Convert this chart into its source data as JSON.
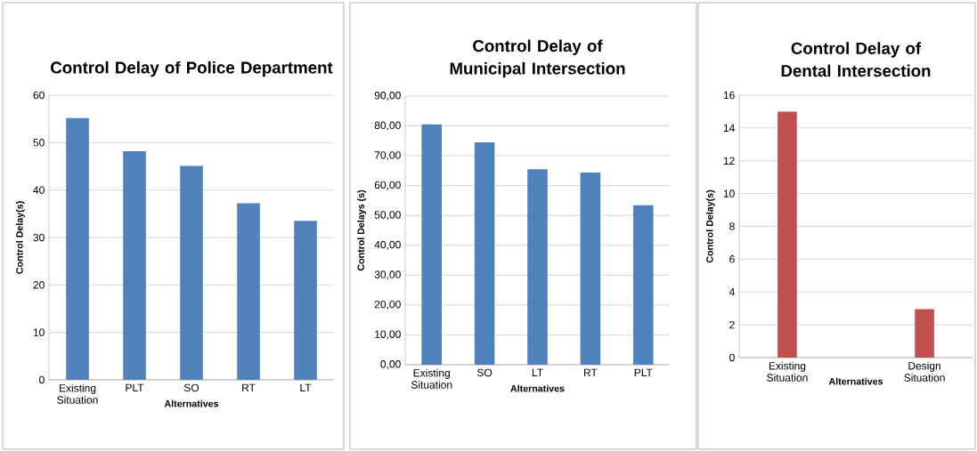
{
  "chart_data": [
    {
      "type": "bar",
      "title": "Control Delay of Police Department",
      "xlabel": "Alternatives",
      "ylabel": "Control Delay(s)",
      "categories": [
        "Existing Situation",
        "PLT",
        "SO",
        "RT",
        "LT"
      ],
      "values": [
        55.2,
        48.2,
        45.1,
        37.2,
        33.5
      ],
      "color": "#4f81bd",
      "ylim": [
        0,
        60
      ],
      "yticks": [
        0,
        10,
        20,
        30,
        40,
        50,
        60
      ],
      "grid": "y"
    },
    {
      "type": "bar",
      "title": "Control Delay of Municipal Intersection",
      "xlabel": "Alternatives",
      "ylabel": "Control Delays (s)",
      "categories": [
        "Existing Situation",
        "SO",
        "LT",
        "RT",
        "PLT"
      ],
      "values": [
        80.5,
        74.5,
        65.5,
        64.4,
        53.4
      ],
      "color": "#4f81bd",
      "ylim": [
        0,
        90
      ],
      "yticks": [
        {
          "value": 0,
          "label": "0,00"
        },
        {
          "value": 10,
          "label": "10,00"
        },
        {
          "value": 20,
          "label": "20,00"
        },
        {
          "value": 30,
          "label": "30,00"
        },
        {
          "value": 40,
          "label": "40,00"
        },
        {
          "value": 50,
          "label": "50,00"
        },
        {
          "value": 60,
          "label": "60,00"
        },
        {
          "value": 70,
          "label": "70,00"
        },
        {
          "value": 80,
          "label": "80,00"
        },
        {
          "value": 90,
          "label": "90,00"
        }
      ],
      "grid": "y"
    },
    {
      "type": "bar",
      "title": "Control Delay of Dental Intersection",
      "xlabel": "Alternatives",
      "ylabel": "Control Delay(s)",
      "categories": [
        "Existing Situation",
        "Design Situation"
      ],
      "values": [
        15.0,
        2.95
      ],
      "color": "#c0504d",
      "ylim": [
        0,
        16
      ],
      "yticks": [
        0,
        2,
        4,
        6,
        8,
        10,
        12,
        14,
        16
      ],
      "grid": "y"
    }
  ]
}
